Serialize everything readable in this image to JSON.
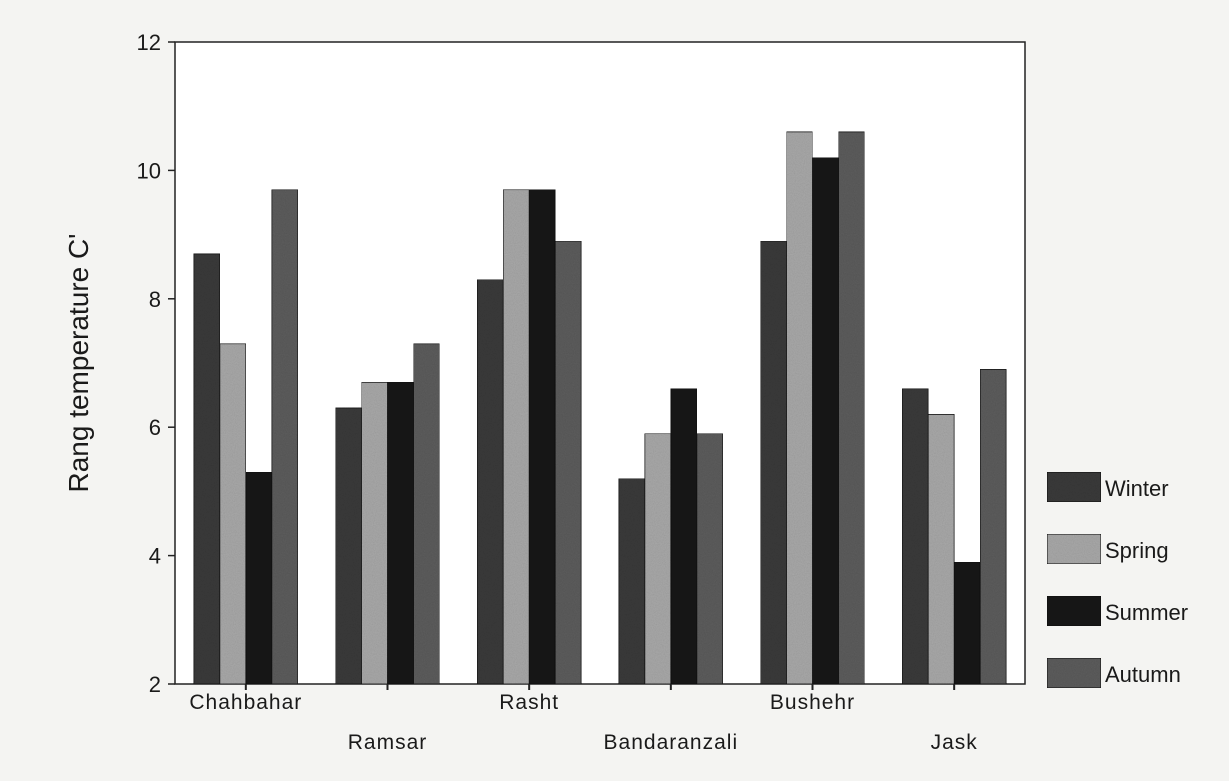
{
  "chart_data": {
    "type": "bar",
    "ylabel": "Rang temperature C'",
    "ylim": [
      2,
      12
    ],
    "yticks": [
      2,
      4,
      6,
      8,
      10,
      12
    ],
    "categories": [
      "Chahbahar",
      "Ramsar",
      "Rasht",
      "Bandaranzali",
      "Bushehr",
      "Jask"
    ],
    "series": [
      {
        "name": "Winter",
        "color": "#3a3a3a",
        "values": [
          8.7,
          6.3,
          8.3,
          5.2,
          8.9,
          6.6
        ]
      },
      {
        "name": "Spring",
        "color": "#a8a8a8",
        "values": [
          7.3,
          6.7,
          9.7,
          5.9,
          10.6,
          6.2
        ]
      },
      {
        "name": "Summer",
        "color": "#161616",
        "values": [
          5.3,
          6.7,
          9.7,
          6.6,
          10.2,
          3.9
        ]
      },
      {
        "name": "Autumn",
        "color": "#5c5c5c",
        "values": [
          9.7,
          7.3,
          8.9,
          5.9,
          10.6,
          6.9
        ]
      }
    ],
    "grid": false,
    "legend_position": "right"
  }
}
